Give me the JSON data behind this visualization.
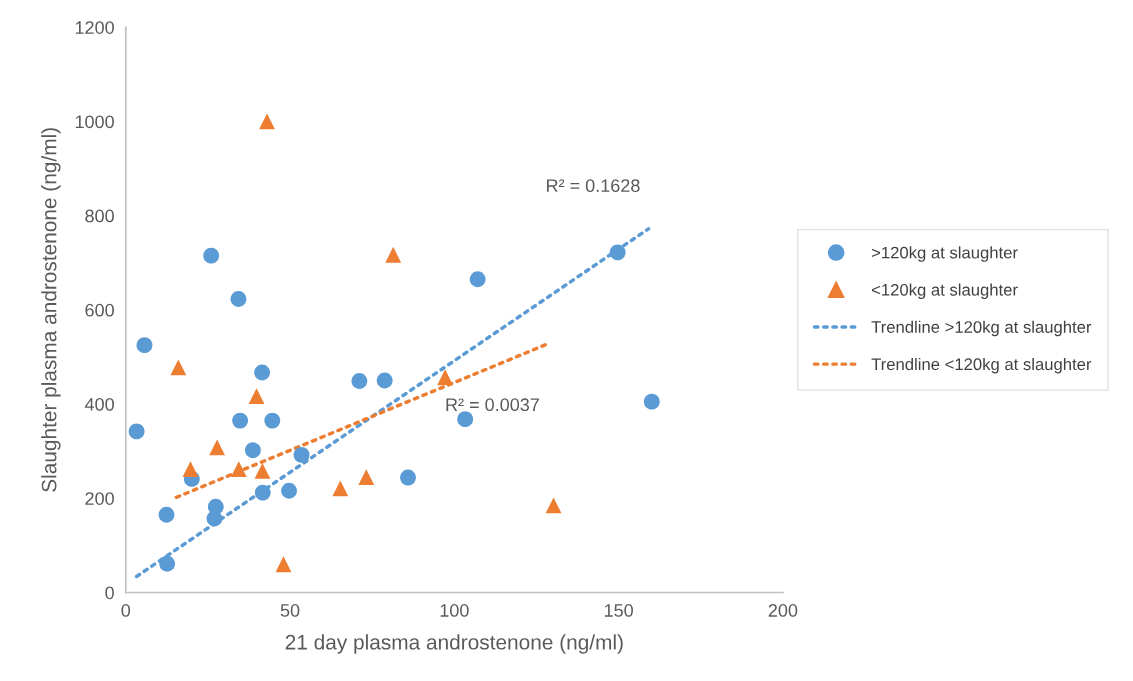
{
  "chart_data": {
    "type": "scatter",
    "xlabel": "21 day plasma androstenone (ng/ml)",
    "ylabel": "Slaughter plasma androstenone (ng/ml)",
    "xlim": [
      0,
      200
    ],
    "xticks": [
      0,
      50,
      100,
      150,
      200
    ],
    "ylim": [
      0,
      1200
    ],
    "yticks": [
      0,
      200,
      400,
      600,
      800,
      1000,
      1200
    ],
    "grid": false,
    "legend": "right",
    "series": [
      {
        "name": ">120kg at slaughter",
        "marker": "circle",
        "color": "#5b9bd5",
        "x": [
          26.0,
          34.3,
          5.7,
          41.5,
          34.8,
          44.6,
          3.3,
          38.7,
          53.5,
          20.1,
          41.7,
          49.7,
          27.4,
          27.0,
          12.4,
          12.6,
          107.1,
          149.7,
          71.1,
          78.8,
          103.3,
          160.1,
          85.9
        ],
        "values": [
          715,
          623,
          525,
          467,
          365,
          365,
          342,
          302,
          292,
          241,
          212,
          216,
          182,
          157,
          165,
          61,
          665,
          722,
          449,
          450,
          368,
          405,
          244
        ]
      },
      {
        "name": "<120kg at slaughter",
        "marker": "triangle",
        "color": "#ed7d31",
        "x": [
          16.0,
          39.8,
          27.8,
          19.7,
          34.4,
          41.6,
          48.0,
          43.0,
          81.4,
          97.2,
          65.3,
          73.2,
          130.2
        ],
        "values": [
          478,
          417,
          308,
          262,
          262,
          258,
          60,
          1000,
          717,
          457,
          221,
          245,
          185
        ]
      },
      {
        "name": "Trendline >120kg at slaughter",
        "type": "line",
        "marker": "none",
        "line_style": "dotted",
        "color": "#5b9bd5",
        "x": [
          3.3,
          159.1
        ],
        "values": [
          34,
          772
        ]
      },
      {
        "name": "Trendline <120kg at slaughter",
        "type": "line",
        "marker": "none",
        "line_style": "dotted",
        "color": "#ed7d31",
        "x": [
          15.4,
          128.5
        ],
        "values": [
          202,
          528
        ]
      }
    ],
    "annotations": [
      "R² = 0.1628",
      "R² = 0.0037"
    ]
  }
}
